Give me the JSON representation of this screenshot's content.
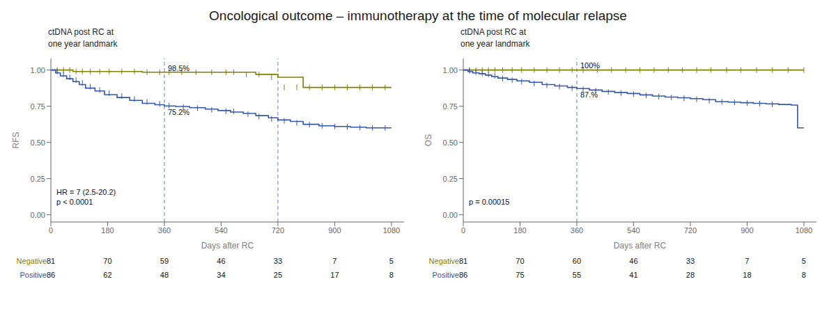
{
  "title": "Oncological outcome – immunotherapy at the time of molecular relapse",
  "chart_data": [
    {
      "type": "step",
      "subtitle": "ctDNA post RC at\none year landmark",
      "x_label": "Days after RC",
      "y_label": "RFS",
      "xlim": [
        0,
        1120
      ],
      "ylim": [
        -0.05,
        1.08
      ],
      "xticks": [
        0,
        180,
        360,
        540,
        720,
        900,
        1080
      ],
      "yticks": [
        {
          "value": 0.0,
          "label": "0.00"
        },
        {
          "value": 0.25,
          "label": "0.25"
        },
        {
          "value": 0.5,
          "label": "0.50"
        },
        {
          "value": 0.75,
          "label": "0.75"
        },
        {
          "value": 1.0,
          "label": "1.00"
        }
      ],
      "grid": false,
      "vlines": {
        "x": [
          360,
          720
        ],
        "color": "#6677bb",
        "line_style": "dashed"
      },
      "annotations": [
        {
          "text": "98.5%",
          "x": 360,
          "y": 0.985
        },
        {
          "text": "75.2%",
          "x": 360,
          "y": 0.74
        }
      ],
      "stats_text": "HR = 7 (2.5-20.2)\np < 0.0001",
      "at_risk_x": [
        0,
        180,
        360,
        540,
        720,
        900,
        1080
      ],
      "series": [
        {
          "name": "Negative",
          "color": "#808000",
          "x": [
            0,
            15,
            30,
            50,
            70,
            90,
            110,
            140,
            170,
            210,
            250,
            290,
            330,
            360,
            395,
            440,
            490,
            540,
            570,
            610,
            650,
            690,
            720,
            760,
            800,
            850,
            900,
            950,
            1000,
            1050,
            1080
          ],
          "values": [
            1.0,
            1.0,
            1.0,
            1.0,
            0.99,
            0.99,
            0.99,
            0.99,
            0.99,
            0.99,
            0.99,
            0.985,
            0.985,
            0.985,
            0.985,
            0.985,
            0.985,
            0.985,
            0.985,
            0.985,
            0.97,
            0.97,
            0.95,
            0.95,
            0.88,
            0.88,
            0.88,
            0.88,
            0.88,
            0.88,
            0.88
          ],
          "censor_x": [
            20,
            40,
            60,
            80,
            100,
            125,
            155,
            185,
            225,
            265,
            305,
            345,
            375,
            415,
            460,
            510,
            555,
            580,
            620,
            660,
            700,
            740,
            780,
            820,
            860,
            900,
            940,
            980,
            1020,
            1060
          ],
          "censor_y": [
            1.0,
            1.0,
            1.0,
            0.99,
            0.99,
            0.99,
            0.99,
            0.99,
            0.99,
            0.99,
            0.985,
            0.985,
            0.985,
            0.985,
            0.985,
            0.985,
            0.985,
            0.985,
            0.97,
            0.97,
            0.95,
            0.88,
            0.88,
            0.88,
            0.88,
            0.88,
            0.88,
            0.88,
            0.88,
            0.88
          ],
          "at_risk": [
            81,
            70,
            59,
            46,
            33,
            7,
            5
          ]
        },
        {
          "name": "Positive",
          "color": "#3355aa",
          "x": [
            0,
            15,
            30,
            50,
            70,
            90,
            110,
            140,
            170,
            210,
            250,
            290,
            330,
            360,
            395,
            440,
            490,
            530,
            570,
            610,
            650,
            690,
            720,
            760,
            800,
            850,
            900,
            950,
            1000,
            1050,
            1080
          ],
          "values": [
            1.0,
            0.98,
            0.96,
            0.94,
            0.92,
            0.9,
            0.875,
            0.855,
            0.83,
            0.81,
            0.79,
            0.77,
            0.76,
            0.752,
            0.748,
            0.74,
            0.73,
            0.72,
            0.71,
            0.7,
            0.685,
            0.67,
            0.655,
            0.645,
            0.625,
            0.615,
            0.61,
            0.605,
            0.6,
            0.6,
            0.6
          ],
          "censor_x": [
            20,
            40,
            60,
            80,
            100,
            125,
            155,
            185,
            225,
            265,
            305,
            345,
            375,
            420,
            465,
            510,
            555,
            580,
            625,
            660,
            700,
            740,
            780,
            820,
            860,
            900,
            940,
            980,
            1020,
            1060
          ],
          "censor_y": [
            0.99,
            0.97,
            0.95,
            0.93,
            0.91,
            0.885,
            0.862,
            0.84,
            0.82,
            0.8,
            0.78,
            0.765,
            0.754,
            0.745,
            0.737,
            0.725,
            0.715,
            0.715,
            0.695,
            0.678,
            0.662,
            0.648,
            0.635,
            0.622,
            0.615,
            0.61,
            0.607,
            0.602,
            0.6,
            0.6
          ],
          "at_risk": [
            86,
            62,
            48,
            34,
            25,
            17,
            8
          ]
        }
      ]
    },
    {
      "type": "step",
      "subtitle": "ctDNA post RC at\none year landmark",
      "x_label": "Days after RC",
      "y_label": "OS",
      "xlim": [
        0,
        1120
      ],
      "ylim": [
        -0.05,
        1.08
      ],
      "xticks": [
        0,
        180,
        360,
        540,
        720,
        900,
        1080
      ],
      "yticks": [
        {
          "value": 0.0,
          "label": "0.00"
        },
        {
          "value": 0.25,
          "label": "0.25"
        },
        {
          "value": 0.5,
          "label": "0.50"
        },
        {
          "value": 0.75,
          "label": "0.75"
        },
        {
          "value": 1.0,
          "label": "1.00"
        }
      ],
      "grid": false,
      "vlines": {
        "x": [
          360
        ],
        "color": "#6677bb",
        "line_style": "dashed"
      },
      "annotations": [
        {
          "text": "100%",
          "x": 360,
          "y": 1.005
        },
        {
          "text": "87.%",
          "x": 360,
          "y": 0.86
        }
      ],
      "stats_text": "p = 0.00015",
      "at_risk_x": [
        0,
        180,
        360,
        540,
        720,
        900,
        1080
      ],
      "series": [
        {
          "name": "Negative",
          "color": "#808000",
          "x": [
            0,
            15,
            30,
            50,
            70,
            90,
            110,
            140,
            170,
            210,
            250,
            290,
            330,
            360,
            400,
            450,
            500,
            550,
            600,
            650,
            700,
            750,
            800,
            850,
            900,
            950,
            1000,
            1050,
            1080
          ],
          "values": [
            1.0,
            1.0,
            1.0,
            1.0,
            1.0,
            1.0,
            1.0,
            1.0,
            1.0,
            1.0,
            1.0,
            1.0,
            1.0,
            1.0,
            1.0,
            1.0,
            1.0,
            1.0,
            1.0,
            1.0,
            1.0,
            1.0,
            1.0,
            1.0,
            1.0,
            1.0,
            1.0,
            1.0,
            1.0
          ],
          "censor_x": [
            20,
            40,
            60,
            80,
            100,
            125,
            155,
            185,
            225,
            265,
            305,
            345,
            380,
            425,
            470,
            515,
            560,
            605,
            650,
            695,
            740,
            785,
            835,
            880,
            930,
            980,
            1030,
            1080
          ],
          "censor_y": [
            1.0,
            1.0,
            1.0,
            1.0,
            1.0,
            1.0,
            1.0,
            1.0,
            1.0,
            1.0,
            1.0,
            1.0,
            1.0,
            1.0,
            1.0,
            1.0,
            1.0,
            1.0,
            1.0,
            1.0,
            1.0,
            1.0,
            1.0,
            1.0,
            1.0,
            1.0,
            1.0,
            1.0
          ],
          "at_risk": [
            81,
            70,
            60,
            46,
            33,
            7,
            5
          ]
        },
        {
          "name": "Positive",
          "color": "#3355aa",
          "x": [
            0,
            15,
            30,
            50,
            70,
            90,
            110,
            140,
            170,
            210,
            250,
            290,
            330,
            360,
            400,
            440,
            480,
            520,
            560,
            600,
            640,
            680,
            720,
            760,
            800,
            840,
            880,
            920,
            960,
            1000,
            1040,
            1060,
            1080
          ],
          "values": [
            1.0,
            0.99,
            0.98,
            0.975,
            0.965,
            0.955,
            0.945,
            0.935,
            0.925,
            0.915,
            0.9,
            0.89,
            0.88,
            0.872,
            0.862,
            0.852,
            0.845,
            0.838,
            0.828,
            0.82,
            0.813,
            0.808,
            0.802,
            0.795,
            0.782,
            0.778,
            0.774,
            0.77,
            0.766,
            0.762,
            0.758,
            0.6,
            0.6
          ],
          "censor_x": [
            20,
            40,
            60,
            80,
            100,
            125,
            155,
            185,
            225,
            265,
            305,
            345,
            380,
            420,
            460,
            500,
            540,
            580,
            620,
            660,
            700,
            740,
            780,
            820,
            860,
            900,
            940,
            980
          ],
          "censor_y": [
            0.995,
            0.985,
            0.977,
            0.969,
            0.96,
            0.94,
            0.93,
            0.92,
            0.908,
            0.895,
            0.885,
            0.876,
            0.867,
            0.857,
            0.848,
            0.841,
            0.833,
            0.824,
            0.816,
            0.81,
            0.805,
            0.798,
            0.788,
            0.78,
            0.776,
            0.772,
            0.768,
            0.764
          ],
          "at_risk": [
            86,
            75,
            55,
            41,
            28,
            18,
            8
          ]
        }
      ]
    }
  ]
}
